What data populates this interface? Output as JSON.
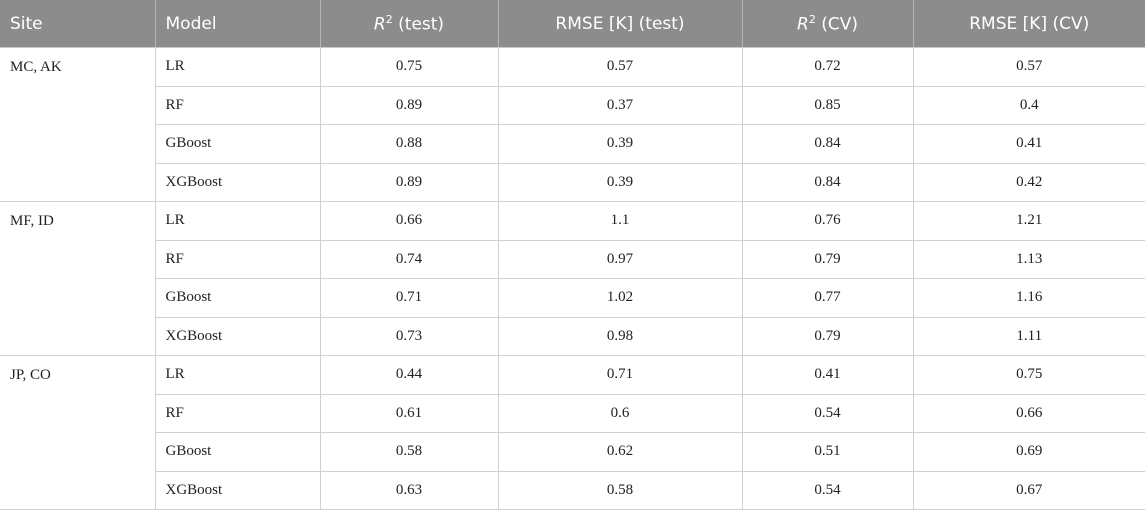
{
  "table": {
    "header": [
      {
        "text": "Site"
      },
      {
        "text": "Model"
      },
      {
        "symbol": "R",
        "superscript": "2",
        "text": "(test)"
      },
      {
        "text": "RMSE [K] (test)"
      },
      {
        "symbol": "R",
        "superscript": "2",
        "text": "(CV)"
      },
      {
        "text": "RMSE [K] (CV)"
      }
    ],
    "groups": [
      {
        "site": "MC, AK",
        "rows": [
          {
            "model": "LR",
            "values": [
              0.75,
              0.57,
              0.72,
              0.57
            ]
          },
          {
            "model": "RF",
            "values": [
              0.89,
              0.37,
              0.85,
              0.4
            ]
          },
          {
            "model": "GBoost",
            "values": [
              0.88,
              0.39,
              0.84,
              0.41
            ]
          },
          {
            "model": "XGBoost",
            "values": [
              0.89,
              0.39,
              0.84,
              0.42
            ]
          }
        ]
      },
      {
        "site": "MF, ID",
        "rows": [
          {
            "model": "LR",
            "values": [
              0.66,
              1.1,
              0.76,
              1.21
            ]
          },
          {
            "model": "RF",
            "values": [
              0.74,
              0.97,
              0.79,
              1.13
            ]
          },
          {
            "model": "GBoost",
            "values": [
              0.71,
              1.02,
              0.77,
              1.16
            ]
          },
          {
            "model": "XGBoost",
            "values": [
              0.73,
              0.98,
              0.79,
              1.11
            ]
          }
        ]
      },
      {
        "site": "JP, CO",
        "rows": [
          {
            "model": "LR",
            "values": [
              0.44,
              0.71,
              0.41,
              0.75
            ]
          },
          {
            "model": "RF",
            "values": [
              0.61,
              0.6,
              0.54,
              0.66
            ]
          },
          {
            "model": "GBoost",
            "values": [
              0.58,
              0.62,
              0.51,
              0.69
            ]
          },
          {
            "model": "XGBoost",
            "values": [
              0.63,
              0.58,
              0.54,
              0.67
            ]
          }
        ]
      }
    ]
  }
}
